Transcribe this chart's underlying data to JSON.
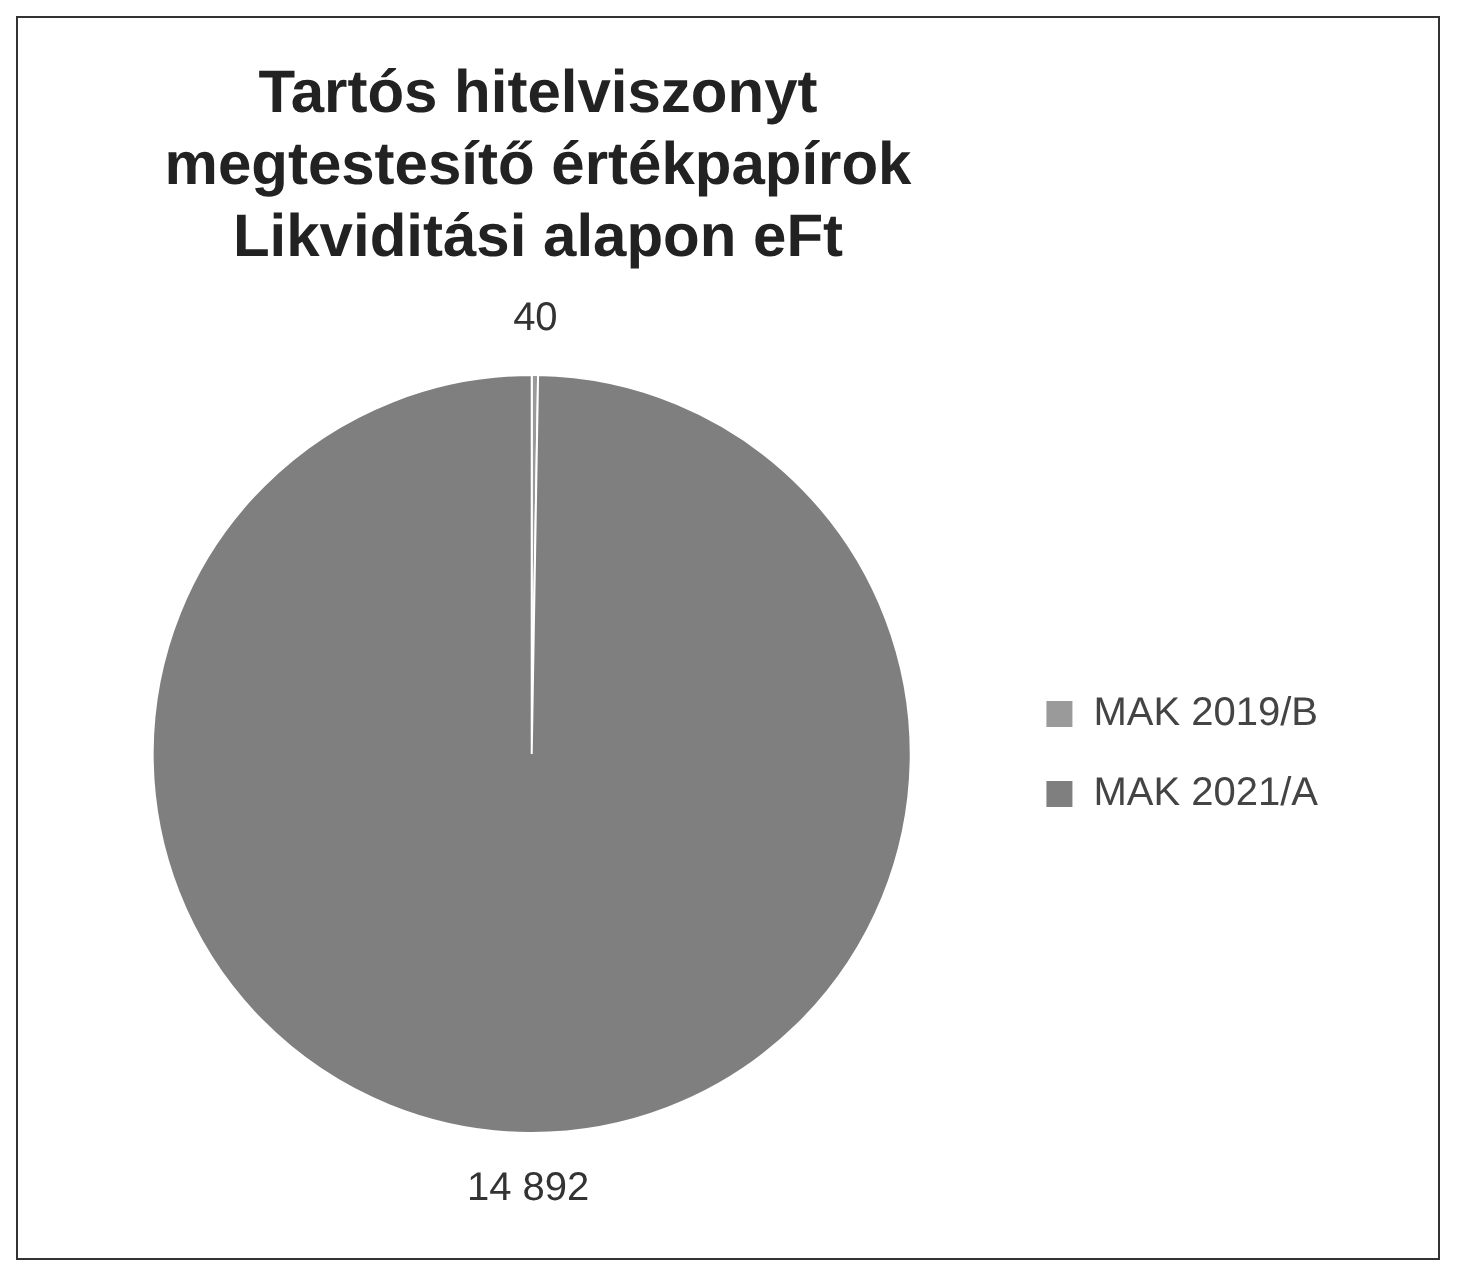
{
  "chart_data": {
    "type": "pie",
    "title": "Tartós hitelviszonyt megtestesítő értékpapírok Likviditási alapon eFt",
    "categories": [
      "MAK 2019/B",
      "MAK 2021/A"
    ],
    "values": [
      40,
      14892
    ],
    "value_labels": [
      "40",
      "14 892"
    ],
    "colors": [
      "#9a9a9a",
      "#7f7f7f"
    ],
    "legend": "right"
  }
}
